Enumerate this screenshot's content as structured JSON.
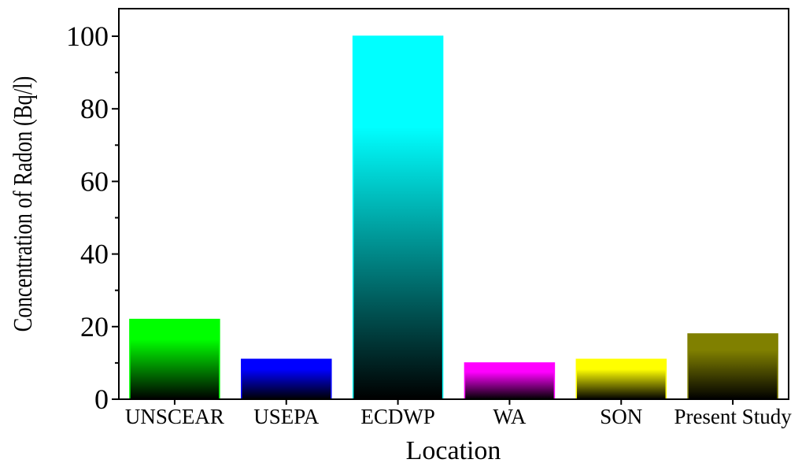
{
  "chart_data": {
    "type": "bar",
    "title": "",
    "xlabel": "Location",
    "ylabel": "Concentration of Radon (Bq/l)",
    "categories": [
      "UNSCEAR",
      "USEPA",
      "ECDWP",
      "WA",
      "SON",
      "Present Study"
    ],
    "values": [
      22,
      11,
      100,
      10,
      11,
      18
    ],
    "ylim": [
      0,
      100
    ],
    "yticks": [
      "0",
      "20",
      "40",
      "60",
      "80",
      "100"
    ],
    "grid": false,
    "legend": "none",
    "bar_colors": [
      "#00ff00",
      "#0000ff",
      "#00ffff",
      "#ff00ff",
      "#ffff00",
      "#808000"
    ],
    "bar_style": "vertical gradient from color (top) to black (bottom)"
  }
}
